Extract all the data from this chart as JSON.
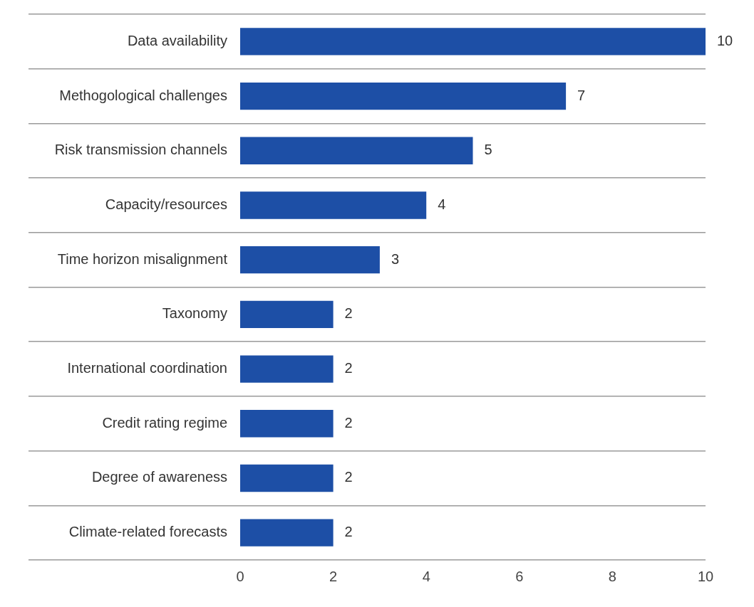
{
  "chart_data": {
    "type": "bar",
    "orientation": "horizontal",
    "categories": [
      "Data availability",
      "Methogological challenges",
      "Risk transmission channels",
      "Capacity/resources",
      "Time horizon misalignment",
      "Taxonomy",
      "International coordination",
      "Credit rating regime",
      "Degree of awareness",
      "Climate-related forecasts"
    ],
    "values": [
      10,
      7,
      5,
      4,
      3,
      2,
      2,
      2,
      2,
      2
    ],
    "color": "#1d4fa6",
    "xlim": [
      0,
      10
    ],
    "xticks": [
      0,
      2,
      4,
      6,
      8,
      10
    ],
    "grid": "y",
    "data_labels": true,
    "legend": false
  }
}
